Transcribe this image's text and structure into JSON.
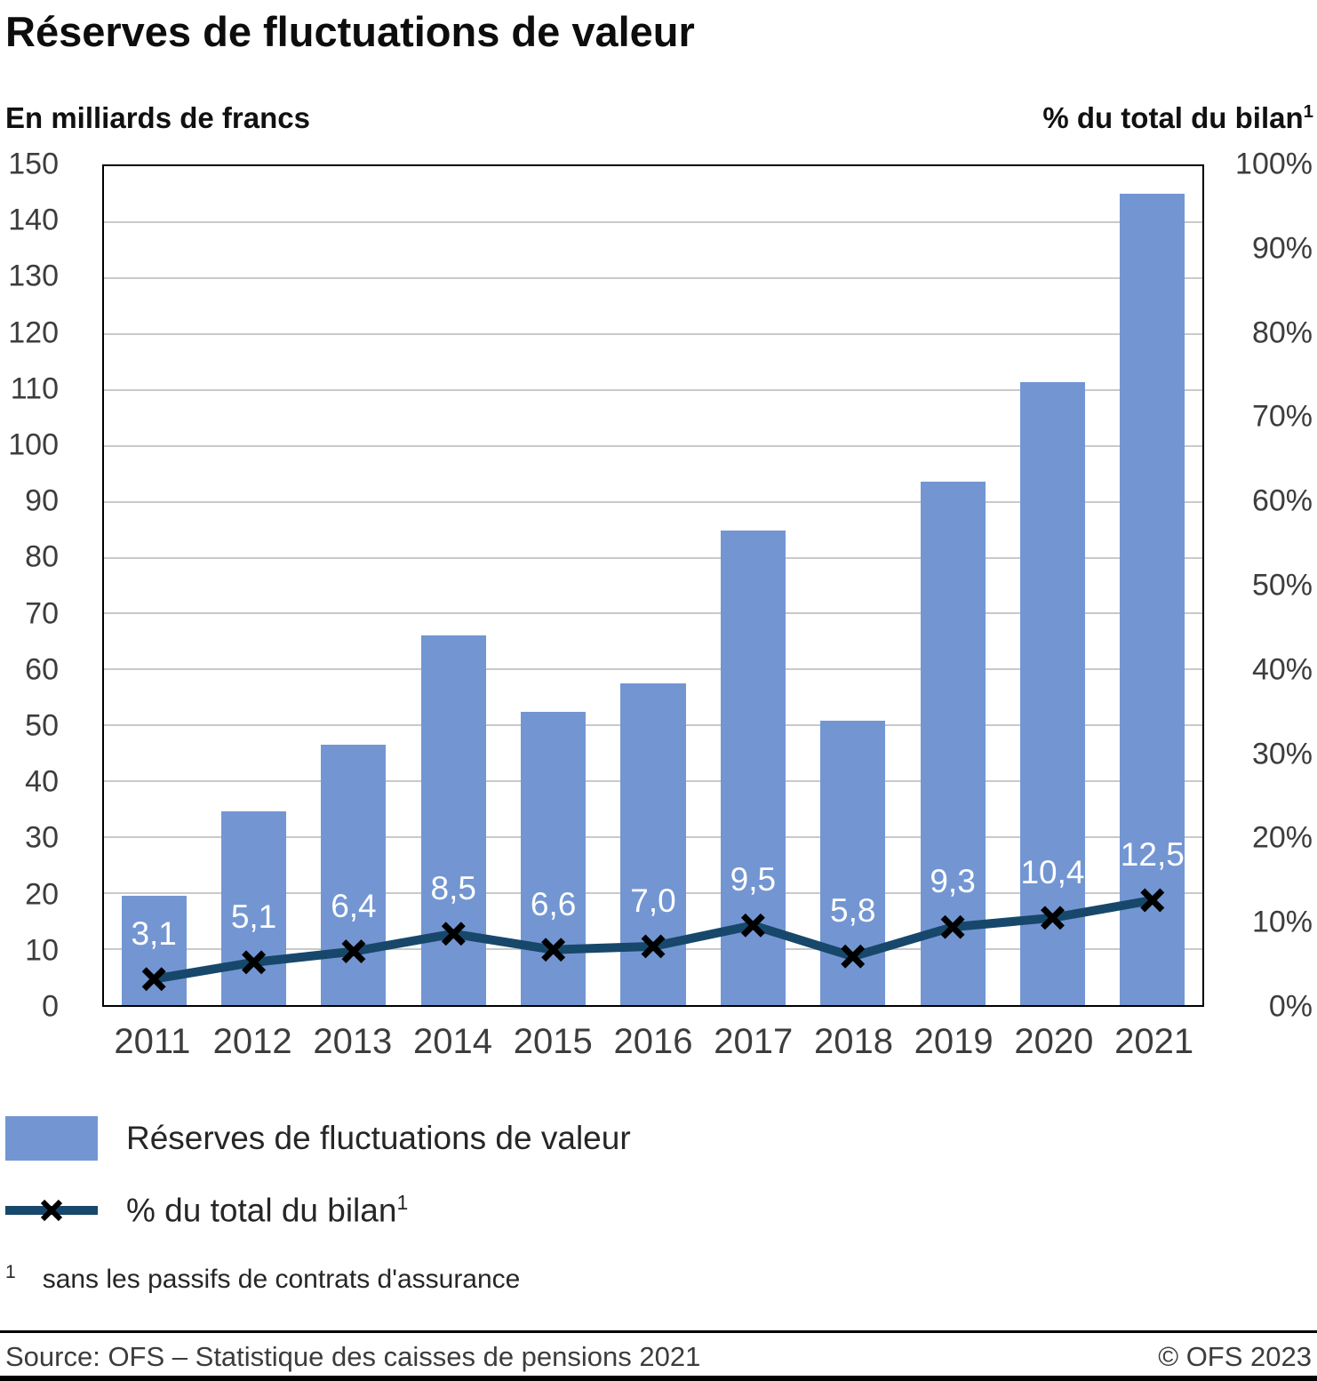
{
  "title": "Réserves de fluctuations de valeur",
  "axes": {
    "left_label": "En milliards de francs",
    "right_label": "% du total du bilan",
    "right_label_sup": "1"
  },
  "chart_data": {
    "type": "bar",
    "categories": [
      "2011",
      "2012",
      "2013",
      "2014",
      "2015",
      "2016",
      "2017",
      "2018",
      "2019",
      "2020",
      "2021"
    ],
    "series": [
      {
        "name": "Réserves de fluctuations de valeur",
        "type": "bar",
        "axis": "left",
        "values": [
          19.5,
          34.6,
          46.5,
          66.1,
          52.4,
          57.6,
          84.9,
          50.9,
          93.6,
          111.4,
          145.1
        ]
      },
      {
        "name": "% du total du bilan",
        "type": "line",
        "axis": "right",
        "values": [
          3.1,
          5.1,
          6.4,
          8.5,
          6.6,
          7.0,
          9.5,
          5.8,
          9.3,
          10.4,
          12.5
        ],
        "labels": [
          "3,1",
          "5,1",
          "6,4",
          "8,5",
          "6,6",
          "7,0",
          "9,5",
          "5,8",
          "9,3",
          "10,4",
          "12,5"
        ]
      }
    ],
    "left_axis": {
      "min": 0,
      "max": 150,
      "step": 10
    },
    "right_axis": {
      "min": 0,
      "max": 100,
      "step": 10,
      "suffix": "%"
    },
    "grid": true,
    "legend_position": "bottom"
  },
  "legend": {
    "bar_label": "Réserves de fluctuations de valeur",
    "line_label": "% du total du bilan",
    "line_label_sup": "1"
  },
  "footnote": {
    "sup": "1",
    "text": "sans les passifs de contrats d'assurance"
  },
  "footer": {
    "source": "Source: OFS – Statistique des caisses de pensions 2021",
    "copyright": "© OFS 2023"
  },
  "colors": {
    "bar": "#7396d3",
    "line": "#17486b",
    "marker": "#000000",
    "grid": "#c9c9c9"
  }
}
